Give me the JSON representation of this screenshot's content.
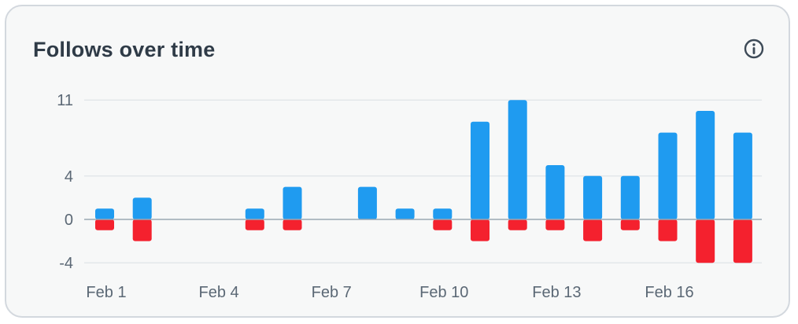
{
  "header": {
    "title": "Follows over time",
    "info_icon": "info-icon"
  },
  "colors": {
    "follows": "#1f9bf0",
    "unfollows": "#f4212e",
    "grid": "#e3e7ea",
    "zero_line": "#9aa7b3"
  },
  "chart_data": {
    "type": "bar",
    "title": "Follows over time",
    "xlabel": "",
    "ylabel": "",
    "categories": [
      "Feb 1",
      "Feb 2",
      "Feb 3",
      "Feb 4",
      "Feb 5",
      "Feb 6",
      "Feb 7",
      "Feb 8",
      "Feb 9",
      "Feb 10",
      "Feb 11",
      "Feb 12",
      "Feb 13",
      "Feb 14",
      "Feb 15",
      "Feb 16",
      "Feb 17",
      "Feb 18"
    ],
    "series": [
      {
        "values": [
          1,
          2,
          0,
          0,
          1,
          3,
          0,
          3,
          1,
          1,
          9,
          11,
          5,
          4,
          4,
          8,
          10,
          8
        ]
      },
      {
        "values": [
          -1,
          -2,
          0,
          0,
          -1,
          -1,
          0,
          0,
          0,
          -1,
          -2,
          -1,
          -1,
          -2,
          -1,
          -2,
          -4,
          -4
        ]
      }
    ],
    "x_tick_labels": [
      "Feb 1",
      "Feb 4",
      "Feb 7",
      "Feb 10",
      "Feb 13",
      "Feb 16"
    ],
    "y_ticks": [
      11,
      4,
      0,
      -4
    ],
    "ylim": [
      -4,
      11
    ],
    "grid": true,
    "legend": "none"
  }
}
